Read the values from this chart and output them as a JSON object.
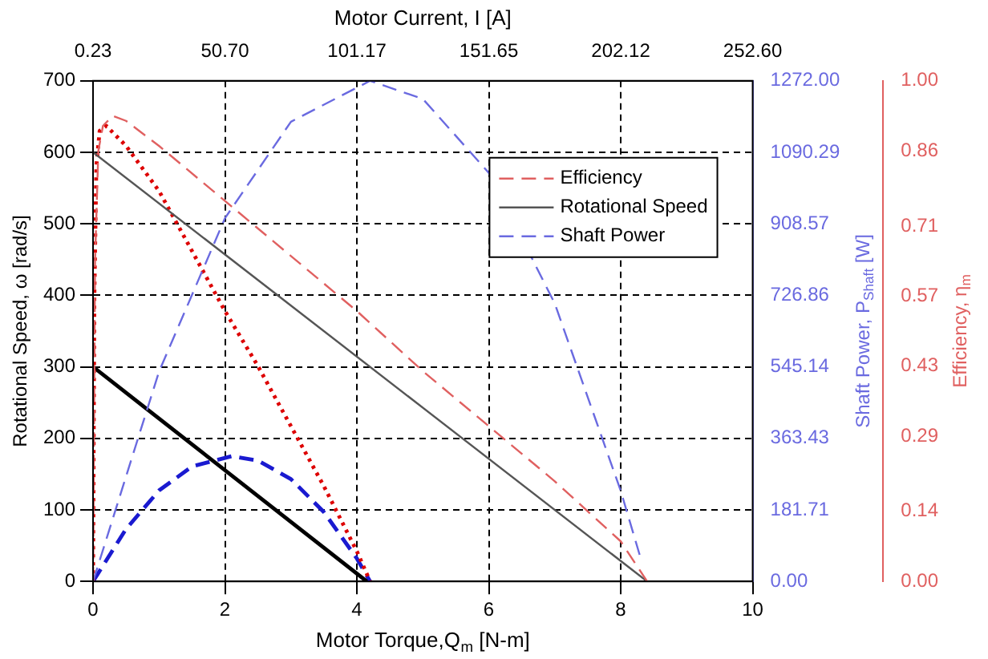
{
  "chart_data": {
    "type": "line",
    "xlabel": "Motor Torque,Q$_{m}$ [N-m]",
    "x2label": "Motor Current, I [A]",
    "ylabel": "Rotational Speed, ω [rad/s]",
    "y2label": "Shaft Power, P$_{Shaft}$ [W]",
    "y3label": "Efficiency, η$_{m}$",
    "xlim": [
      0,
      10
    ],
    "xticks": [
      0,
      2,
      4,
      6,
      8,
      10
    ],
    "x2lim": [
      0.23,
      252.6
    ],
    "x2ticks": [
      {
        "value": 0.23,
        "label": "0.23"
      },
      {
        "value": 50.7,
        "label": "50.70"
      },
      {
        "value": 101.17,
        "label": "101.17"
      },
      {
        "value": 151.65,
        "label": "151.65"
      },
      {
        "value": 202.12,
        "label": "202.12"
      },
      {
        "value": 252.6,
        "label": "252.60"
      }
    ],
    "ylim": [
      0,
      700
    ],
    "yticks": [
      0,
      100,
      200,
      300,
      400,
      500,
      600,
      700
    ],
    "y2lim": [
      0,
      1272
    ],
    "y2ticks": [
      {
        "value": 0,
        "label": "0.00"
      },
      {
        "value": 181.71,
        "label": "181.71"
      },
      {
        "value": 363.43,
        "label": "363.43"
      },
      {
        "value": 545.14,
        "label": "545.14"
      },
      {
        "value": 726.86,
        "label": "726.86"
      },
      {
        "value": 908.57,
        "label": "908.57"
      },
      {
        "value": 1090.29,
        "label": "1090.29"
      },
      {
        "value": 1272,
        "label": "1272.00"
      }
    ],
    "y3lim": [
      0,
      1
    ],
    "y3ticks": [
      {
        "value": 0,
        "label": "0.00"
      },
      {
        "value": 0.14,
        "label": "0.14"
      },
      {
        "value": 0.29,
        "label": "0.29"
      },
      {
        "value": 0.43,
        "label": "0.43"
      },
      {
        "value": 0.57,
        "label": "0.57"
      },
      {
        "value": 0.71,
        "label": "0.71"
      },
      {
        "value": 0.86,
        "label": "0.86"
      },
      {
        "value": 1,
        "label": "1.00"
      }
    ],
    "grid": true,
    "legend": "top right",
    "marker": "none",
    "series": [
      {
        "name": "Efficiency",
        "color": "#e06060",
        "axis": "y3",
        "line_style": "dashed",
        "x": [
          0,
          0.03,
          0.08,
          0.15,
          0.3,
          0.5,
          1,
          2,
          3,
          4,
          5,
          6,
          7,
          8,
          8.4
        ],
        "values": [
          0,
          0.64,
          0.86,
          0.91,
          0.93,
          0.92,
          0.87,
          0.76,
          0.65,
          0.54,
          0.42,
          0.31,
          0.2,
          0.08,
          0
        ]
      },
      {
        "name": "Rotational Speed",
        "color": "#555555",
        "axis": "y",
        "line_style": "solid",
        "x": [
          0,
          8.4
        ],
        "values": [
          600,
          0
        ]
      },
      {
        "name": "Shaft Power",
        "color": "#6a6ae0",
        "axis": "y2",
        "line_style": "dashed",
        "x": [
          0,
          1,
          2,
          3,
          4.2,
          5,
          6,
          7,
          8,
          8.3
        ],
        "values": [
          0,
          533,
          923,
          1168,
          1272,
          1226,
          1038,
          706,
          230,
          60
        ]
      },
      {
        "color": "#dd0000",
        "axis": "y3",
        "line_style": "dotted",
        "x": [
          0,
          0.02,
          0.05,
          0.1,
          0.2,
          0.5,
          1,
          1.5,
          2,
          2.5,
          3,
          3.5,
          4,
          4.2
        ],
        "values": [
          0,
          0.57,
          0.83,
          0.9,
          0.91,
          0.87,
          0.78,
          0.66,
          0.54,
          0.43,
          0.31,
          0.19,
          0.06,
          0
        ]
      },
      {
        "color": "#000000",
        "axis": "y",
        "line_style": "solid",
        "x": [
          0,
          4.15
        ],
        "values": [
          300,
          0
        ]
      },
      {
        "color": "#1a1ad0",
        "axis": "y2",
        "line_style": "dashed",
        "x": [
          0,
          0.5,
          1,
          1.5,
          2.1,
          2.5,
          3,
          3.5,
          4,
          4.2
        ],
        "values": [
          0,
          133,
          231,
          292,
          318,
          307,
          260,
          176,
          58,
          0
        ]
      }
    ]
  }
}
